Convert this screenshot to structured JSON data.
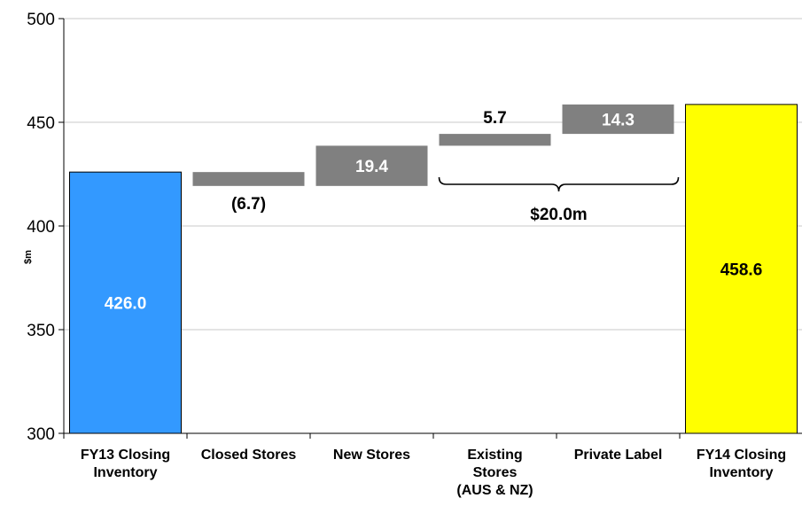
{
  "chart_data": {
    "type": "bar",
    "subtype": "waterfall",
    "title": "",
    "xlabel": "",
    "ylabel": "$m",
    "ylim": [
      300,
      500
    ],
    "yticks": [
      300,
      350,
      400,
      450,
      500
    ],
    "grid": true,
    "legend": "none",
    "categories": [
      "FY13 Closing Inventory",
      "Closed Stores",
      "New Stores",
      "Existing Stores (AUS & NZ)",
      "Private Label",
      "FY14 Closing Inventory"
    ],
    "category_lines": [
      [
        "FY13 Closing",
        "Inventory"
      ],
      [
        "Closed Stores"
      ],
      [
        "New Stores"
      ],
      [
        "Existing",
        "Stores",
        "(AUS & NZ)"
      ],
      [
        "Private Label"
      ],
      [
        "FY14 Closing",
        "Inventory"
      ]
    ],
    "bars": [
      {
        "category": "FY13 Closing Inventory",
        "kind": "total",
        "start": 0,
        "end": 426.0,
        "label": "426.0",
        "color": "#3399FF",
        "label_color": "#FFFFFF",
        "label_position": "inside-middle"
      },
      {
        "category": "Closed Stores",
        "kind": "delta",
        "start": 426.0,
        "end": 419.3,
        "label": "(6.7)",
        "color": "#808080",
        "label_color": "#000000",
        "label_position": "below"
      },
      {
        "category": "New Stores",
        "kind": "delta",
        "start": 419.3,
        "end": 438.7,
        "label": "19.4",
        "color": "#808080",
        "label_color": "#FFFFFF",
        "label_position": "inside"
      },
      {
        "category": "Existing Stores (AUS & NZ)",
        "kind": "delta",
        "start": 438.7,
        "end": 444.4,
        "label": "5.7",
        "color": "#808080",
        "label_color": "#000000",
        "label_position": "above"
      },
      {
        "category": "Private Label",
        "kind": "delta",
        "start": 444.4,
        "end": 458.6,
        "label": "14.3",
        "color": "#808080",
        "label_color": "#FFFFFF",
        "label_position": "inside"
      },
      {
        "category": "FY14 Closing Inventory",
        "kind": "total",
        "start": 0,
        "end": 458.6,
        "label": "458.6",
        "color": "#FFFF00",
        "label_color": "#000000",
        "label_position": "inside-middle"
      }
    ],
    "annotations": [
      {
        "type": "brace",
        "text": "$20.0m",
        "spans": [
          "Existing Stores (AUS & NZ)",
          "Private Label"
        ]
      }
    ]
  }
}
